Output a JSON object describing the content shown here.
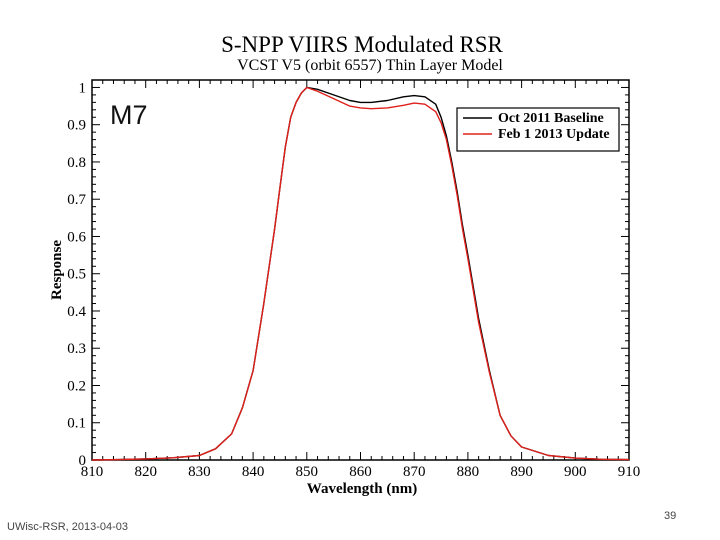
{
  "chart_data": {
    "type": "line",
    "title": "S-NPP VIIRS Modulated RSR",
    "subtitle": "VCST V5 (orbit 6557) Thin Layer Model",
    "xlabel": "Wavelength (nm)",
    "ylabel": "Response",
    "xlim": [
      810,
      910
    ],
    "ylim": [
      0,
      1.02
    ],
    "xticks": [
      "810",
      "820",
      "830",
      "840",
      "850",
      "860",
      "870",
      "880",
      "890",
      "900",
      "910"
    ],
    "yticks": [
      "0",
      "0.1",
      "0.2",
      "0.3",
      "0.4",
      "0.5",
      "0.6",
      "0.7",
      "0.8",
      "0.9",
      "1"
    ],
    "band_label": "M7",
    "legend_position": "top-right",
    "series": [
      {
        "name": "Oct 2011 Baseline",
        "color": "#000000",
        "x": [
          810,
          815,
          820,
          825,
          830,
          833,
          836,
          838,
          840,
          842,
          844,
          845,
          846,
          847,
          848,
          849,
          850,
          852,
          855,
          858,
          860,
          862,
          865,
          868,
          870,
          872,
          874,
          875,
          876,
          877,
          878,
          879,
          880,
          882,
          884,
          886,
          888,
          890,
          895,
          900,
          905,
          910
        ],
        "values": [
          0.0,
          0.001,
          0.003,
          0.006,
          0.012,
          0.03,
          0.07,
          0.14,
          0.24,
          0.42,
          0.62,
          0.73,
          0.84,
          0.92,
          0.96,
          0.985,
          1.0,
          0.995,
          0.98,
          0.965,
          0.96,
          0.96,
          0.965,
          0.975,
          0.978,
          0.975,
          0.955,
          0.92,
          0.87,
          0.8,
          0.72,
          0.63,
          0.55,
          0.38,
          0.24,
          0.12,
          0.065,
          0.035,
          0.012,
          0.005,
          0.002,
          0.001
        ]
      },
      {
        "name": "Feb 1 2013 Update",
        "color": "#e0201b",
        "x": [
          810,
          815,
          820,
          825,
          830,
          833,
          836,
          838,
          840,
          842,
          844,
          845,
          846,
          847,
          848,
          849,
          850,
          852,
          855,
          858,
          860,
          862,
          865,
          868,
          870,
          872,
          874,
          875,
          876,
          877,
          878,
          879,
          880,
          882,
          884,
          886,
          888,
          890,
          895,
          900,
          905,
          910
        ],
        "values": [
          0.0,
          0.001,
          0.003,
          0.006,
          0.012,
          0.03,
          0.07,
          0.14,
          0.24,
          0.42,
          0.62,
          0.73,
          0.84,
          0.92,
          0.96,
          0.985,
          1.0,
          0.99,
          0.97,
          0.95,
          0.945,
          0.943,
          0.945,
          0.952,
          0.958,
          0.955,
          0.935,
          0.905,
          0.86,
          0.79,
          0.71,
          0.62,
          0.54,
          0.37,
          0.235,
          0.12,
          0.065,
          0.035,
          0.012,
          0.005,
          0.002,
          0.001
        ]
      }
    ]
  },
  "footer": {
    "source": "UWisc-RSR, 2013-04-03",
    "page_number": "39"
  }
}
